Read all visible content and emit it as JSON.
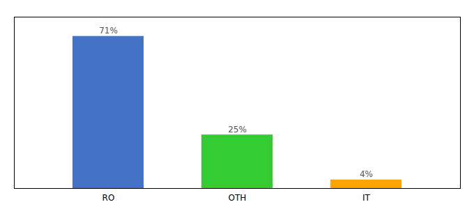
{
  "chart_data": {
    "type": "bar",
    "categories": [
      "RO",
      "OTH",
      "IT"
    ],
    "values": [
      71,
      25,
      4
    ],
    "value_labels": [
      "71%",
      "25%",
      "4%"
    ],
    "colors": [
      "#4472C4",
      "#33CC33",
      "#FFA500"
    ],
    "ylim": [
      0,
      80
    ],
    "yticks": [],
    "data_labels": true,
    "tick_labels": "x",
    "grid": false
  }
}
